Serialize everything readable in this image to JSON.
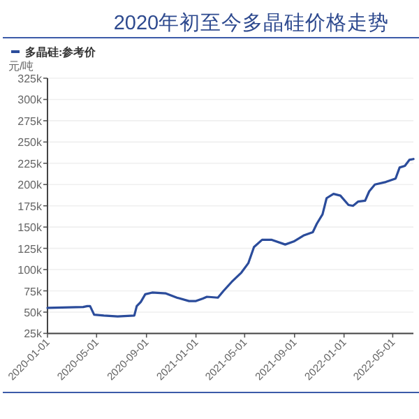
{
  "chart_data": {
    "type": "line",
    "title": "2020年初至今多晶硅价格走势",
    "ylabel": "元/吨",
    "legend": "top left",
    "grid": "y",
    "marker": "none",
    "line_style": "solid",
    "x": [
      "2020-01-01",
      "2020-03-29",
      "2020-04-08",
      "2020-04-15",
      "2020-04-25",
      "2020-05-19",
      "2020-06-22",
      "2020-08-02",
      "2020-08-08",
      "2020-08-18",
      "2020-08-29",
      "2020-09-15",
      "2020-10-19",
      "2020-11-15",
      "2020-12-15",
      "2021-01-01",
      "2021-01-18",
      "2021-01-28",
      "2021-02-24",
      "2021-03-10",
      "2021-03-30",
      "2021-04-23",
      "2021-05-10",
      "2021-05-24",
      "2021-06-13",
      "2021-07-07",
      "2021-08-09",
      "2021-08-30",
      "2021-09-23",
      "2021-10-16",
      "2021-10-26",
      "2021-11-09",
      "2021-11-19",
      "2021-12-06",
      "2021-12-23",
      "2022-01-12",
      "2022-01-23",
      "2022-02-05",
      "2022-02-22",
      "2022-03-04",
      "2022-03-18",
      "2022-04-14",
      "2022-05-08",
      "2022-05-18",
      "2022-05-31",
      "2022-06-11",
      "2022-06-21"
    ],
    "series": [
      {
        "name": "多晶硅:参考价",
        "color": "#2b4c9b",
        "values": [
          55000,
          56000,
          57000,
          57000,
          47000,
          46000,
          45000,
          46000,
          57000,
          62000,
          71000,
          73000,
          72000,
          67000,
          63000,
          63000,
          66000,
          68000,
          67000,
          75000,
          85500,
          96500,
          107500,
          126500,
          135000,
          135000,
          129500,
          133000,
          140000,
          144000,
          154000,
          165000,
          184000,
          189000,
          187000,
          176000,
          175000,
          180000,
          181000,
          192000,
          200000,
          203000,
          207000,
          220000,
          222000,
          229000,
          230000
        ]
      }
    ],
    "xlim": [
      "2020-01-01",
      "2022-06-21"
    ],
    "xticks": [
      "2020-01-01",
      "2020-05-01",
      "2020-09-01",
      "2021-01-01",
      "2021-05-01",
      "2021-09-01",
      "2022-01-01",
      "2022-05-01"
    ],
    "ylim": [
      25000,
      325000
    ],
    "yticks": [
      {
        "value": 25000,
        "label": "25k"
      },
      {
        "value": 50000,
        "label": "50k"
      },
      {
        "value": 75000,
        "label": "75k"
      },
      {
        "value": 100000,
        "label": "100k"
      },
      {
        "value": 125000,
        "label": "125k"
      },
      {
        "value": 150000,
        "label": "150k"
      },
      {
        "value": 175000,
        "label": "175k"
      },
      {
        "value": 200000,
        "label": "200k"
      },
      {
        "value": 225000,
        "label": "225k"
      },
      {
        "value": 250000,
        "label": "250k"
      },
      {
        "value": 275000,
        "label": "275k"
      },
      {
        "value": 300000,
        "label": "300k"
      },
      {
        "value": 325000,
        "label": "325k"
      }
    ]
  }
}
